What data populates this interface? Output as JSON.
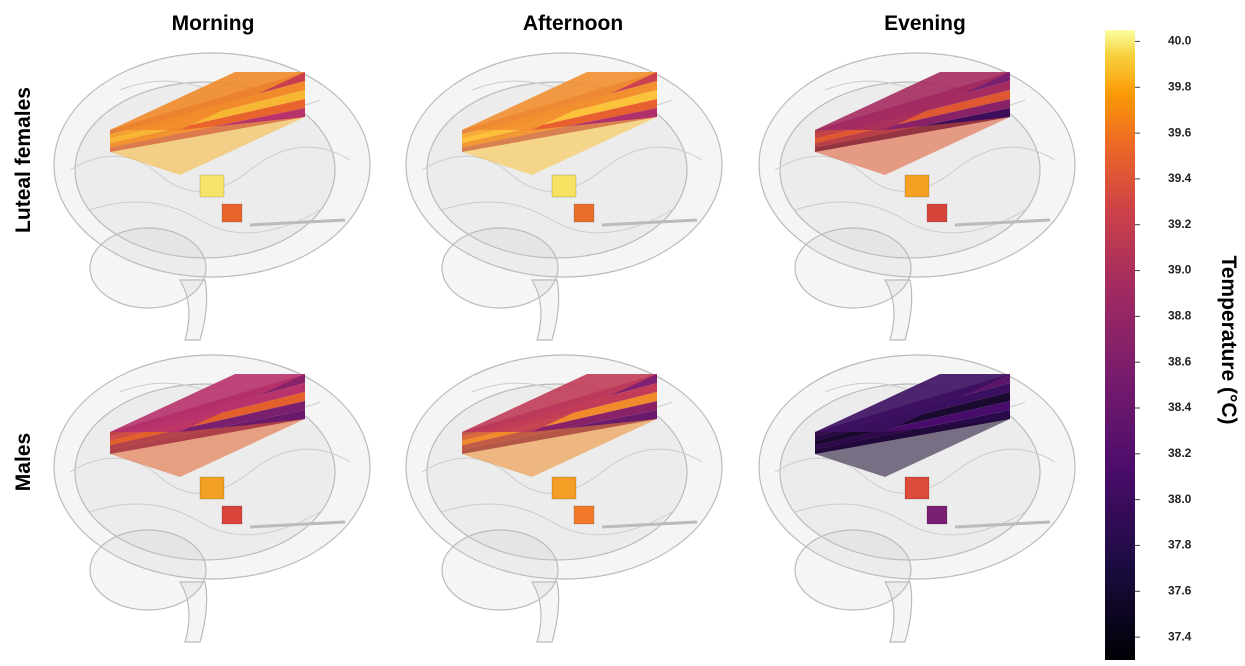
{
  "columns": [
    "Morning",
    "Afternoon",
    "Evening"
  ],
  "rows": [
    "Luteal females",
    "Males"
  ],
  "colorbar": {
    "label": "Temperature (°C)",
    "lim": [
      37.3,
      40.05
    ],
    "ticks": [
      {
        "value": 40,
        "label": "40.0"
      },
      39.8,
      39.6,
      39.4,
      39.2,
      {
        "value": 39,
        "label": "39.0"
      },
      38.8,
      38.6,
      38.4,
      38.2,
      {
        "value": 38,
        "label": "38.0"
      },
      37.8,
      37.6,
      37.4
    ]
  }
}
